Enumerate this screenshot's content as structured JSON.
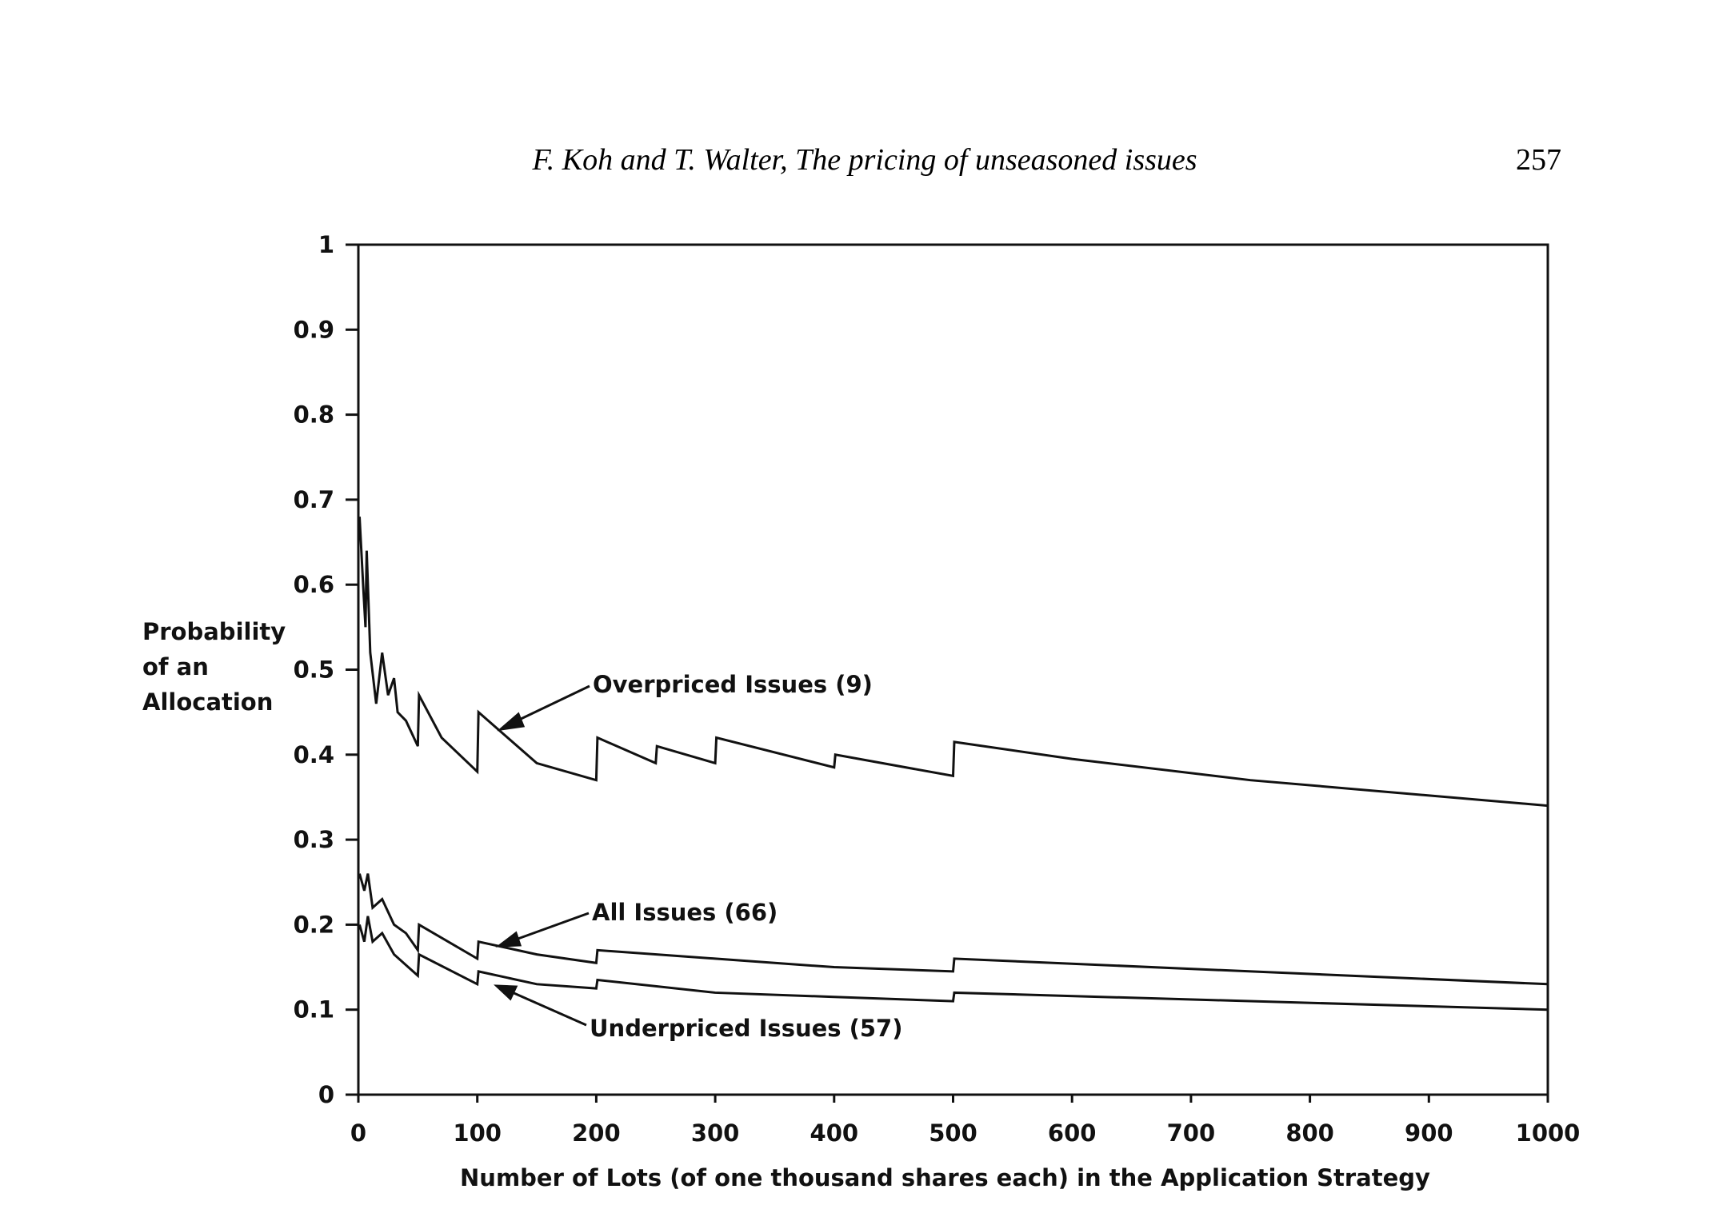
{
  "header": {
    "title": "F. Koh and T. Walter, The pricing of unseasoned issues",
    "page": "257"
  },
  "chart_data": {
    "type": "line",
    "y_label": [
      "Probability",
      "of an",
      "Allocation"
    ],
    "x_label": "Number of Lots (of one thousand shares each) in the Application Strategy",
    "xlim": [
      0,
      1000
    ],
    "xticks": [
      0,
      100,
      200,
      300,
      400,
      500,
      600,
      700,
      800,
      900,
      1000
    ],
    "ylim": [
      0,
      1
    ],
    "yticks": [
      0,
      0.1,
      0.2,
      0.3,
      0.4,
      0.5,
      0.6,
      0.7,
      0.8,
      0.9,
      1
    ],
    "color": "#111111",
    "series": [
      {
        "name": "Overpriced Issues (9)",
        "x": [
          1,
          4,
          6,
          7,
          10,
          15,
          20,
          25,
          30,
          33,
          40,
          50,
          51,
          70,
          100,
          101,
          150,
          200,
          201,
          250,
          251,
          300,
          301,
          400,
          401,
          500,
          501,
          600,
          750,
          1000
        ],
        "values": [
          0.68,
          0.6,
          0.55,
          0.64,
          0.52,
          0.46,
          0.52,
          0.47,
          0.49,
          0.45,
          0.44,
          0.41,
          0.47,
          0.42,
          0.38,
          0.45,
          0.39,
          0.37,
          0.42,
          0.39,
          0.41,
          0.39,
          0.42,
          0.385,
          0.4,
          0.375,
          0.415,
          0.395,
          0.37,
          0.34
        ]
      },
      {
        "name": "All Issues (66)",
        "x": [
          1,
          5,
          8,
          12,
          20,
          30,
          40,
          50,
          51,
          100,
          101,
          150,
          200,
          201,
          300,
          400,
          500,
          501,
          1000
        ],
        "values": [
          0.26,
          0.24,
          0.26,
          0.22,
          0.23,
          0.2,
          0.19,
          0.17,
          0.2,
          0.16,
          0.18,
          0.165,
          0.155,
          0.17,
          0.16,
          0.15,
          0.145,
          0.16,
          0.13
        ]
      },
      {
        "name": "Underpriced Issues (57)",
        "x": [
          1,
          5,
          8,
          12,
          20,
          30,
          50,
          51,
          100,
          101,
          150,
          200,
          201,
          300,
          400,
          500,
          501,
          1000
        ],
        "values": [
          0.2,
          0.18,
          0.21,
          0.18,
          0.19,
          0.165,
          0.14,
          0.165,
          0.13,
          0.145,
          0.13,
          0.125,
          0.135,
          0.12,
          0.115,
          0.11,
          0.12,
          0.1
        ]
      }
    ]
  }
}
